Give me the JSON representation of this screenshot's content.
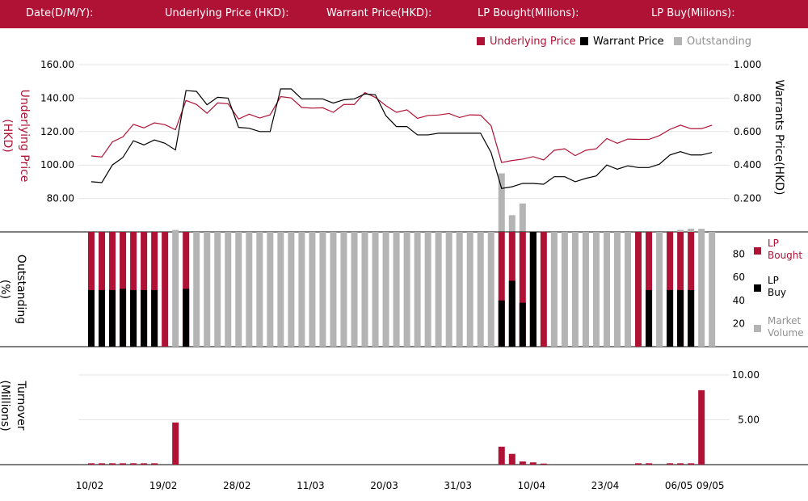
{
  "header": {
    "date_label": "Date(D/M/Y):",
    "underlying_label": "Underlying Price (HKD):",
    "warrant_label": "Warrant  Price(HKD):",
    "lp_bought_label": "LP Bought(Milions):",
    "lp_buy_label": "LP Buy(Milions):"
  },
  "colors": {
    "brand": "#b01236",
    "underlying": "#b01236",
    "warrant": "#000000",
    "outstanding": "#b4b4b4",
    "lp_bought": "#b01236",
    "lp_buy": "#000000",
    "market_volume": "#b4b4b4",
    "turnover": "#b01236"
  },
  "chart_data": [
    {
      "type": "line",
      "legend_position": "top-right",
      "legend": [
        {
          "name": "Underlying Price",
          "color": "#b01236"
        },
        {
          "name": "Warrant  Price",
          "color": "#000000"
        },
        {
          "name": "Outstanding",
          "color": "#b4b4b4"
        }
      ],
      "ylabel_left": "Underlying Price (HKD)",
      "ylabel_right": "Warrants  Price(HKD)",
      "y_ticks_left": [
        "160.00",
        "140.00",
        "120.00",
        "100.00",
        "80.00"
      ],
      "y_ticks_right": [
        "1.000",
        "0.800",
        "0.600",
        "0.400",
        "0.200"
      ],
      "ylim_left": [
        60,
        160
      ],
      "ylim_right": [
        0,
        1.0
      ],
      "grid": true,
      "series": [
        {
          "name": "Underlying Price",
          "axis": "left",
          "values": [
            105.4,
            104.8,
            113.8,
            116.8,
            124.3,
            122.2,
            125.2,
            124.1,
            121.1,
            138.6,
            136.2,
            130.9,
            137.1,
            136.6,
            127.5,
            130.4,
            128.1,
            130.0,
            140.9,
            140.1,
            134.4,
            134.0,
            134.2,
            131.5,
            136.2,
            136.2,
            143.3,
            140.4,
            135.5,
            131.5,
            133.0,
            127.9,
            129.6,
            129.9,
            130.8,
            128.4,
            130.0,
            129.8,
            123.5,
            101.5,
            102.7,
            103.5,
            105.0,
            103.0,
            108.8,
            109.7,
            105.6,
            108.8,
            109.7,
            115.8,
            113.0,
            115.5,
            115.3,
            115.3,
            117.6,
            121.3,
            123.8,
            121.7,
            121.7,
            123.8
          ]
        },
        {
          "name": "Warrant  Price",
          "axis": "right",
          "values": [
            0.3,
            0.295,
            0.4,
            0.445,
            0.545,
            0.52,
            0.55,
            0.53,
            0.49,
            0.845,
            0.84,
            0.76,
            0.805,
            0.8,
            0.625,
            0.62,
            0.6,
            0.6,
            0.855,
            0.855,
            0.795,
            0.795,
            0.795,
            0.77,
            0.79,
            0.795,
            0.825,
            0.82,
            0.695,
            0.63,
            0.63,
            0.58,
            0.58,
            0.59,
            0.59,
            0.59,
            0.59,
            0.59,
            0.475,
            0.26,
            0.27,
            0.29,
            0.29,
            0.285,
            0.33,
            0.33,
            0.3,
            0.32,
            0.335,
            0.4,
            0.375,
            0.395,
            0.385,
            0.385,
            0.405,
            0.46,
            0.48,
            0.46,
            0.46,
            0.475
          ]
        },
        {
          "name": "Outstanding",
          "axis": "right",
          "index_start": 39,
          "values": [
            0.35,
            0.1,
            0.17
          ]
        }
      ]
    },
    {
      "type": "bar",
      "ylabel": "Outstanding (%)",
      "y_ticks": [
        "80",
        "60",
        "40",
        "20"
      ],
      "ylim": [
        0,
        100
      ],
      "legend_position": "right",
      "legend": [
        {
          "name": "LP Bought",
          "color": "#b01236"
        },
        {
          "name": "LP Buy",
          "color": "#000000"
        },
        {
          "name": "Market Volume",
          "color": "#b4b4b4"
        }
      ],
      "kind_codes": {
        "R": "LP Bought",
        "G": "Market Volume",
        "K": "LP Buy"
      },
      "bar_kind": [
        "R",
        "R",
        "R",
        "R",
        "R",
        "R",
        "R",
        "R",
        "G",
        "R",
        "G",
        "G",
        "G",
        "G",
        "G",
        "G",
        "G",
        "G",
        "G",
        "G",
        "G",
        "G",
        "G",
        "G",
        "G",
        "G",
        "G",
        "G",
        "G",
        "G",
        "G",
        "G",
        "G",
        "G",
        "G",
        "G",
        "G",
        "G",
        "G",
        "R",
        "R",
        "R",
        "K",
        "R",
        "G",
        "G",
        "G",
        "G",
        "G",
        "G",
        "G",
        "G",
        "R",
        "R",
        "G",
        "R",
        "R",
        "R",
        "G",
        "G"
      ],
      "lp_buy_values": [
        {
          "i": 0,
          "v": 49
        },
        {
          "i": 1,
          "v": 49
        },
        {
          "i": 2,
          "v": 49
        },
        {
          "i": 3,
          "v": 50
        },
        {
          "i": 4,
          "v": 49
        },
        {
          "i": 5,
          "v": 49
        },
        {
          "i": 6,
          "v": 49
        },
        {
          "i": 9,
          "v": 50
        },
        {
          "i": 39,
          "v": 40
        },
        {
          "i": 40,
          "v": 57
        },
        {
          "i": 41,
          "v": 38
        },
        {
          "i": 42,
          "v": 99
        },
        {
          "i": 53,
          "v": 49
        },
        {
          "i": 55,
          "v": 49
        },
        {
          "i": 56,
          "v": 49
        },
        {
          "i": 57,
          "v": 49
        }
      ],
      "market_volume_marks": [
        {
          "i": 8,
          "v": 101
        },
        {
          "i": 56,
          "v": 101
        },
        {
          "i": 57,
          "v": 102
        },
        {
          "i": 58,
          "v": 102
        }
      ]
    },
    {
      "type": "bar",
      "ylabel": "Turnover (Millions)",
      "y_ticks": [
        "10.00",
        "5.00"
      ],
      "ylim": [
        0,
        10.2
      ],
      "bars": [
        {
          "i": 0,
          "v": 0.15
        },
        {
          "i": 1,
          "v": 0.15
        },
        {
          "i": 2,
          "v": 0.15
        },
        {
          "i": 3,
          "v": 0.15
        },
        {
          "i": 4,
          "v": 0.15
        },
        {
          "i": 5,
          "v": 0.15
        },
        {
          "i": 6,
          "v": 0.15
        },
        {
          "i": 8,
          "v": 4.7
        },
        {
          "i": 39,
          "v": 2.0
        },
        {
          "i": 40,
          "v": 1.2
        },
        {
          "i": 41,
          "v": 0.35
        },
        {
          "i": 42,
          "v": 0.25
        },
        {
          "i": 43,
          "v": 0.12
        },
        {
          "i": 52,
          "v": 0.15
        },
        {
          "i": 53,
          "v": 0.15
        },
        {
          "i": 55,
          "v": 0.15
        },
        {
          "i": 56,
          "v": 0.15
        },
        {
          "i": 57,
          "v": 0.15
        },
        {
          "i": 58,
          "v": 8.3
        }
      ]
    }
  ],
  "x_axis": {
    "count": 60,
    "labels": [
      {
        "i": 0,
        "text": "10/02"
      },
      {
        "i": 7,
        "text": "19/02"
      },
      {
        "i": 14,
        "text": "28/02"
      },
      {
        "i": 21,
        "text": "11/03"
      },
      {
        "i": 28,
        "text": "20/03"
      },
      {
        "i": 35,
        "text": "31/03"
      },
      {
        "i": 42,
        "text": "10/04"
      },
      {
        "i": 49,
        "text": "23/04"
      },
      {
        "i": 56,
        "text": "06/05"
      },
      {
        "i": 59,
        "text": "09/05"
      }
    ]
  }
}
